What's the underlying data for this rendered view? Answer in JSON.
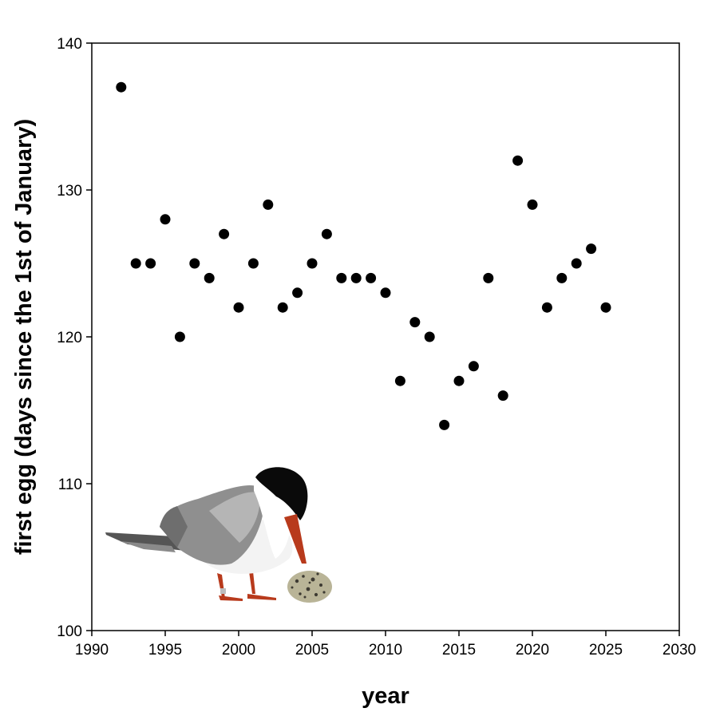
{
  "chart_data": {
    "type": "scatter",
    "xlabel": "year",
    "ylabel": "first egg (days since the 1st of January)",
    "xlim": [
      1990,
      2030
    ],
    "ylim": [
      100,
      140
    ],
    "xticks": [
      1990,
      1995,
      2000,
      2005,
      2010,
      2015,
      2020,
      2025,
      2030
    ],
    "yticks": [
      100,
      110,
      120,
      130,
      140
    ],
    "grid": false,
    "marker_color": "#000000",
    "series": [
      {
        "points": [
          {
            "x": 1992,
            "y": 137
          },
          {
            "x": 1993,
            "y": 125
          },
          {
            "x": 1994,
            "y": 125
          },
          {
            "x": 1995,
            "y": 128
          },
          {
            "x": 1996,
            "y": 120
          },
          {
            "x": 1997,
            "y": 125
          },
          {
            "x": 1998,
            "y": 124
          },
          {
            "x": 1999,
            "y": 127
          },
          {
            "x": 2000,
            "y": 122
          },
          {
            "x": 2001,
            "y": 125
          },
          {
            "x": 2002,
            "y": 129
          },
          {
            "x": 2003,
            "y": 122
          },
          {
            "x": 2004,
            "y": 123
          },
          {
            "x": 2005,
            "y": 125
          },
          {
            "x": 2006,
            "y": 127
          },
          {
            "x": 2007,
            "y": 124
          },
          {
            "x": 2008,
            "y": 124
          },
          {
            "x": 2009,
            "y": 124
          },
          {
            "x": 2010,
            "y": 123
          },
          {
            "x": 2011,
            "y": 117
          },
          {
            "x": 2012,
            "y": 121
          },
          {
            "x": 2013,
            "y": 120
          },
          {
            "x": 2014,
            "y": 114
          },
          {
            "x": 2015,
            "y": 117
          },
          {
            "x": 2016,
            "y": 118
          },
          {
            "x": 2017,
            "y": 124
          },
          {
            "x": 2018,
            "y": 116
          },
          {
            "x": 2019,
            "y": 132
          },
          {
            "x": 2020,
            "y": 129
          },
          {
            "x": 2021,
            "y": 122
          },
          {
            "x": 2022,
            "y": 124
          },
          {
            "x": 2023,
            "y": 125
          },
          {
            "x": 2024,
            "y": 126
          },
          {
            "x": 2025,
            "y": 122
          }
        ]
      }
    ],
    "illustration": "tern-with-egg"
  }
}
